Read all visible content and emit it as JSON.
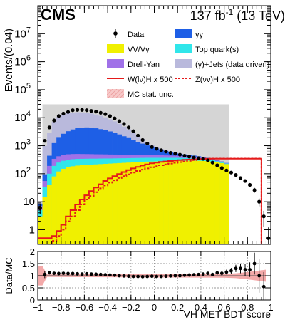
{
  "header": {
    "experiment": "CMS",
    "lumi_prefix": "137 fb",
    "lumi_exponent": "-1",
    "lumi_suffix": " (13 TeV)"
  },
  "colors": {
    "gg": "#1e5fe6",
    "vv": "#f0f000",
    "top": "#30e6ea",
    "dy": "#a071e8",
    "jets": "#b9b9dc",
    "wh": "#e51a1a",
    "zh": "#e51a1a",
    "mc_unc": "#f2a0a0",
    "data": "#000000"
  },
  "chart_data": [
    {
      "type": "area",
      "ylabel": "Events/(0.04)",
      "xlim": [
        -1.0,
        1.0
      ],
      "ylim": [
        0.3,
        100000000
      ],
      "yscale": "log",
      "grid": false,
      "legend_position": "top",
      "ytick_labels": [
        "1",
        "10",
        "10",
        "10",
        "10",
        "10",
        "10",
        "10"
      ],
      "ytick_exponents": [
        "",
        "",
        "2",
        "3",
        "4",
        "5",
        "6",
        "7"
      ],
      "x_bin_edges": [
        -1.0,
        -0.96,
        -0.92,
        -0.88,
        -0.84,
        -0.8,
        -0.76,
        -0.72,
        -0.68,
        -0.64,
        -0.6,
        -0.56,
        -0.52,
        -0.48,
        -0.44,
        -0.4,
        -0.36,
        -0.32,
        -0.28,
        -0.24,
        -0.2,
        -0.16,
        -0.12,
        -0.08,
        -0.04,
        0.0,
        0.04,
        0.08,
        0.12,
        0.16,
        0.2,
        0.24,
        0.28,
        0.32,
        0.36,
        0.4,
        0.44,
        0.48,
        0.52,
        0.56,
        0.6,
        0.64,
        0.68,
        0.72,
        0.76,
        0.8,
        0.84,
        0.88,
        0.92,
        0.96,
        1.0
      ],
      "stack": [
        {
          "name": "VV/Vγ",
          "color": "#f0f000",
          "values": [
            3,
            15,
            40,
            80,
            120,
            150,
            170,
            185,
            195,
            200,
            205,
            210,
            215,
            220,
            225,
            230,
            235,
            240,
            245,
            250,
            255,
            260,
            265,
            270,
            272,
            275,
            278,
            280,
            282,
            285,
            288,
            290,
            292,
            293,
            290,
            285,
            280,
            270,
            255,
            240,
            220,
            0,
            0,
            0,
            0,
            0,
            0,
            0,
            0,
            0
          ]
        },
        {
          "name": "Top quark(s)",
          "color": "#30e6ea",
          "values": [
            2,
            18,
            60,
            110,
            130,
            140,
            145,
            145,
            143,
            140,
            138,
            135,
            130,
            128,
            125,
            120,
            118,
            115,
            112,
            110,
            108,
            105,
            103,
            100,
            98,
            95,
            92,
            90,
            87,
            85,
            80,
            75,
            70,
            65,
            58,
            50,
            42,
            33,
            25,
            18,
            12,
            0,
            0,
            0,
            0,
            0,
            0,
            0,
            0,
            0
          ]
        },
        {
          "name": "Drell-Yan",
          "color": "#a071e8",
          "values": [
            2,
            22,
            90,
            150,
            170,
            180,
            180,
            175,
            170,
            165,
            160,
            155,
            150,
            145,
            140,
            135,
            130,
            125,
            120,
            115,
            110,
            105,
            100,
            95,
            92,
            88,
            84,
            80,
            76,
            72,
            67,
            62,
            57,
            50,
            44,
            37,
            30,
            22,
            16,
            11,
            7,
            0,
            0,
            0,
            0,
            0,
            0,
            0,
            0,
            0
          ]
        },
        {
          "name": "γγ",
          "color": "#1e5fe6",
          "values": [
            1,
            40,
            250,
            900,
            1500,
            2200,
            2800,
            3300,
            3700,
            3900,
            4000,
            3900,
            3700,
            3400,
            3100,
            2750,
            2400,
            2050,
            1700,
            1400,
            1150,
            900,
            720,
            560,
            430,
            330,
            250,
            190,
            140,
            105,
            80,
            62,
            47,
            36,
            28,
            21,
            16,
            11,
            8,
            5,
            3,
            0,
            0,
            0,
            0,
            0,
            0,
            0,
            0,
            0
          ]
        },
        {
          "name": "(γ)+Jets (data driven)",
          "color": "#b9b9dc",
          "values": [
            2,
            900,
            2400,
            6000,
            8800,
            10600,
            11400,
            11600,
            11500,
            11100,
            10500,
            9700,
            8800,
            7800,
            6700,
            5500,
            4500,
            3500,
            2600,
            1950,
            1350,
            900,
            570,
            350,
            200,
            110,
            58,
            28,
            13,
            5,
            0,
            0,
            0,
            0,
            0,
            0,
            0,
            0,
            0,
            0,
            0,
            0,
            0,
            0,
            0,
            0,
            0,
            0,
            0,
            0
          ]
        }
      ],
      "extra_band": {
        "name": "",
        "color": "#d5d5d5",
        "x_range": [
          -0.96,
          0.64
        ],
        "y_range": [
          0.3,
          30000
        ]
      },
      "data": {
        "name": "Data",
        "x": [
          -0.98,
          -0.94,
          -0.9,
          -0.86,
          -0.82,
          -0.78,
          -0.74,
          -0.7,
          -0.66,
          -0.62,
          -0.58,
          -0.54,
          -0.5,
          -0.46,
          -0.42,
          -0.38,
          -0.34,
          -0.3,
          -0.26,
          -0.22,
          -0.18,
          -0.14,
          -0.1,
          -0.06,
          -0.02,
          0.02,
          0.06,
          0.1,
          0.14,
          0.18,
          0.22,
          0.26,
          0.3,
          0.34,
          0.38,
          0.42,
          0.46,
          0.5,
          0.54,
          0.58,
          0.62,
          0.66,
          0.7,
          0.74,
          0.78,
          0.82,
          0.86,
          0.9,
          0.94,
          0.98
        ],
        "y": [
          6,
          1500,
          4500,
          8000,
          11500,
          14000,
          16000,
          18500,
          19000,
          19000,
          18500,
          17500,
          16500,
          15000,
          13500,
          11500,
          9500,
          7500,
          6000,
          4500,
          3300,
          2300,
          1600,
          1200,
          900,
          780,
          690,
          620,
          560,
          520,
          480,
          440,
          410,
          380,
          360,
          340,
          300,
          250,
          200,
          160,
          130,
          110,
          90,
          70,
          55,
          40,
          26,
          10,
          3,
          0.5
        ]
      },
      "lines": [
        {
          "name": "W(lν)H x 500",
          "style": "solid",
          "color": "#e51a1a",
          "values": [
            0.5,
            0.5,
            0.5,
            0.6,
            0.9,
            1.5,
            3,
            5,
            8,
            12,
            17,
            24,
            32,
            42,
            55,
            68,
            82,
            98,
            115,
            135,
            155,
            175,
            195,
            215,
            235,
            250,
            265,
            275,
            285,
            295,
            305,
            315,
            320,
            325,
            330,
            335,
            340,
            345,
            345,
            345,
            345,
            345,
            345,
            345,
            345,
            345,
            345,
            345,
            0,
            0
          ]
        },
        {
          "name": "Z(νν)H x 500",
          "style": "dotted",
          "color": "#e51a1a",
          "values": [
            0.3,
            0.3,
            0.3,
            0.4,
            0.6,
            1,
            2,
            3,
            5,
            8,
            12,
            16,
            22,
            30,
            38,
            48,
            58,
            70,
            82,
            95,
            110,
            125,
            140,
            155,
            170,
            185,
            200,
            215,
            230,
            245,
            260,
            275,
            290,
            305,
            320,
            335,
            345,
            350,
            350,
            350,
            350,
            350,
            350,
            350,
            350,
            350,
            350,
            350,
            0,
            0
          ]
        }
      ],
      "mc_unc_label": "MC stat. unc."
    },
    {
      "type": "scatter",
      "ylabel": "Data/MC",
      "xlabel": "VH MET BDT score",
      "xlim": [
        -1.0,
        1.0
      ],
      "ylim": [
        0,
        2
      ],
      "grid": true,
      "xtick_labels": [
        "−1",
        "−0.8",
        "−0.6",
        "−0.4",
        "−0.2",
        "0",
        "0.2",
        "0.4",
        "0.6",
        "0.8",
        "1"
      ],
      "ytick_labels": [
        "0",
        "0.5",
        "1",
        "1.5",
        "2"
      ],
      "x": [
        -0.94,
        -0.9,
        -0.86,
        -0.82,
        -0.78,
        -0.74,
        -0.7,
        -0.66,
        -0.62,
        -0.58,
        -0.54,
        -0.5,
        -0.46,
        -0.42,
        -0.38,
        -0.34,
        -0.3,
        -0.26,
        -0.22,
        -0.18,
        -0.14,
        -0.1,
        -0.06,
        -0.02,
        0.02,
        0.06,
        0.1,
        0.14,
        0.18,
        0.22,
        0.26,
        0.3,
        0.34,
        0.38,
        0.42,
        0.46,
        0.5,
        0.54,
        0.58,
        0.62,
        0.66,
        0.7,
        0.74,
        0.78,
        0.82,
        0.86,
        0.9,
        0.94
      ],
      "y": [
        1.05,
        1.12,
        1.1,
        1.09,
        1.1,
        1.09,
        1.09,
        1.08,
        1.07,
        1.08,
        1.07,
        1.06,
        1.05,
        1.04,
        1.03,
        1.02,
        1.0,
        0.99,
        0.98,
        0.97,
        0.97,
        0.96,
        0.97,
        0.98,
        0.97,
        0.97,
        0.98,
        0.99,
        1.0,
        1.0,
        1.02,
        1.03,
        1.04,
        1.05,
        1.07,
        1.1,
        1.05,
        1.12,
        1.1,
        1.15,
        1.2,
        1.3,
        1.3,
        1.25,
        1.25,
        1.5,
        1.0,
        0.55
      ],
      "yerr": [
        0.15,
        0.03,
        0.02,
        0.02,
        0.02,
        0.02,
        0.02,
        0.02,
        0.02,
        0.02,
        0.02,
        0.02,
        0.02,
        0.02,
        0.02,
        0.02,
        0.02,
        0.02,
        0.02,
        0.02,
        0.02,
        0.02,
        0.02,
        0.03,
        0.03,
        0.03,
        0.03,
        0.03,
        0.03,
        0.04,
        0.04,
        0.04,
        0.05,
        0.05,
        0.05,
        0.06,
        0.07,
        0.08,
        0.09,
        0.1,
        0.12,
        0.15,
        0.2,
        0.25,
        0.3,
        0.45,
        0.7,
        0.6
      ],
      "unc_band": {
        "x": [
          -1.0,
          -0.96,
          -0.92,
          0.6,
          0.7,
          0.8,
          0.88,
          0.96
        ],
        "half_width": [
          0.4,
          0.4,
          0.05,
          0.08,
          0.1,
          0.15,
          0.2,
          0.25
        ]
      }
    }
  ],
  "legend": {
    "items": [
      {
        "label": "Data",
        "kind": "data"
      },
      {
        "label": "γγ",
        "kind": "box",
        "color": "#1e5fe6"
      },
      {
        "label": "VV/Vγ",
        "kind": "box",
        "color": "#f0f000"
      },
      {
        "label": "Top quark(s)",
        "kind": "box",
        "color": "#30e6ea"
      },
      {
        "label": "Drell-Yan",
        "kind": "box",
        "color": "#a071e8"
      },
      {
        "label": "(γ)+Jets (data driven)",
        "kind": "box",
        "color": "#b9b9dc"
      },
      {
        "label": "W(lν)H x 500",
        "kind": "solid",
        "color": "#e51a1a"
      },
      {
        "label": "Z(νν)H x 500",
        "kind": "dotted",
        "color": "#e51a1a"
      },
      {
        "label": "MC stat. unc.",
        "kind": "hatch",
        "color": "#f2a0a0"
      }
    ]
  }
}
